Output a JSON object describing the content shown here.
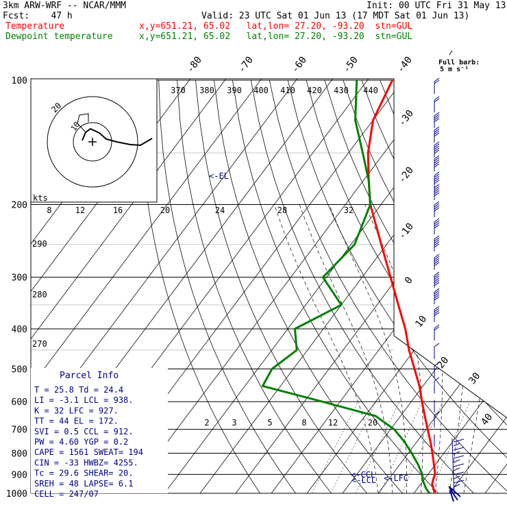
{
  "header": {
    "model": "3km ARW-WRF -- NCAR/MMM",
    "init": "Init: 00 UTC Fri 31 May 13",
    "fcst": "Fcst:    47 h",
    "valid": "Valid: 23 UTC Sat 01 Jun 13 (17 MDT Sat 01 Jun 13)",
    "temp_label": "Temperature",
    "dew_label": "Dewpoint temperature",
    "temp_info": "x,y=651.21, 65.02   lat,lon= 27.20, -93.20  stn=GUL",
    "dew_info": "x,y=651.21, 65.02   lat,lon= 27.20, -93.20  stn=GUL",
    "temp_color": "#ff0000",
    "dew_color": "#008000"
  },
  "barb_legend": {
    "title": "Full barb:",
    "unit": "5 m s⁻¹"
  },
  "parcel_info": {
    "title": "Parcel Info",
    "rows": [
      "T  =   25.8  Td =  24.4",
      "LI =   -3.1  LCL =  938.",
      "K  =     32  LFC =  927.",
      "TT =     44  EL  =  172.",
      "SVI =   0.5  CCL =  912.",
      "PW =   4.60  YGP =   0.2",
      "CAPE =  1561  SWEAT=  194",
      "CIN  =   -33  HWBZ= 4255.",
      "Tc  =  29.6  SHEAR=  20.",
      "SREH =    48  LAPSE=  6.1",
      "CELL = 247/07"
    ]
  },
  "hodograph": {
    "units": "kts",
    "ring_labels": [
      "10",
      "20"
    ]
  },
  "levels": {
    "el": "<-EL",
    "lcl": "<-LCL",
    "ccl": "<-CCL",
    "lfc": "<-LFC"
  },
  "chart_data": {
    "type": "line",
    "title": "",
    "pressure_levels": [
      100,
      200,
      300,
      400,
      500,
      600,
      700,
      800,
      900,
      1000
    ],
    "isotherm_labels": [
      "-80",
      "-70",
      "-60",
      "-50",
      "-40",
      "-30",
      "-20",
      "-10",
      "0",
      "10",
      "20",
      "30",
      "40"
    ],
    "theta_labels": [
      "370",
      "380",
      "390",
      "400",
      "410",
      "420",
      "430",
      "440"
    ],
    "theta_left_labels": [
      "290",
      "280",
      "270"
    ],
    "mixing_ratio_labels": [
      "2",
      "3",
      "5",
      "8",
      "12",
      "20"
    ],
    "wetbulb_labels": [
      "8",
      "12",
      "16",
      "20",
      "24",
      "28",
      "32"
    ],
    "series": [
      {
        "name": "Temperature",
        "color": "#ff0000",
        "points": [
          [
            1000,
            25.8
          ],
          [
            975,
            24.6
          ],
          [
            950,
            23.2
          ],
          [
            925,
            22.5
          ],
          [
            900,
            22.0
          ],
          [
            850,
            19.5
          ],
          [
            800,
            16.8
          ],
          [
            750,
            13.8
          ],
          [
            700,
            10.4
          ],
          [
            650,
            6.8
          ],
          [
            600,
            3.0
          ],
          [
            550,
            -1.0
          ],
          [
            500,
            -6.0
          ],
          [
            450,
            -11.5
          ],
          [
            400,
            -17.0
          ],
          [
            350,
            -24.0
          ],
          [
            300,
            -32.0
          ],
          [
            250,
            -41.5
          ],
          [
            200,
            -53.0
          ],
          [
            175,
            -58.5
          ],
          [
            150,
            -64.5
          ],
          [
            125,
            -70.0
          ],
          [
            100,
            -73.0
          ]
        ]
      },
      {
        "name": "Dewpoint temperature",
        "color": "#008000",
        "points": [
          [
            1000,
            24.4
          ],
          [
            975,
            22.5
          ],
          [
            950,
            21.0
          ],
          [
            925,
            19.5
          ],
          [
            900,
            18.4
          ],
          [
            850,
            15.0
          ],
          [
            800,
            11.0
          ],
          [
            750,
            6.5
          ],
          [
            700,
            1.0
          ],
          [
            650,
            -7.0
          ],
          [
            600,
            -25.0
          ],
          [
            550,
            -45.0
          ],
          [
            500,
            -46.0
          ],
          [
            450,
            -43.0
          ],
          [
            400,
            -48.0
          ],
          [
            350,
            -40.0
          ],
          [
            300,
            -51.0
          ],
          [
            250,
            -49.0
          ],
          [
            200,
            -53.0
          ],
          [
            175,
            -58.5
          ],
          [
            150,
            -66.0
          ],
          [
            125,
            -75.0
          ],
          [
            100,
            -83.0
          ]
        ]
      }
    ]
  }
}
